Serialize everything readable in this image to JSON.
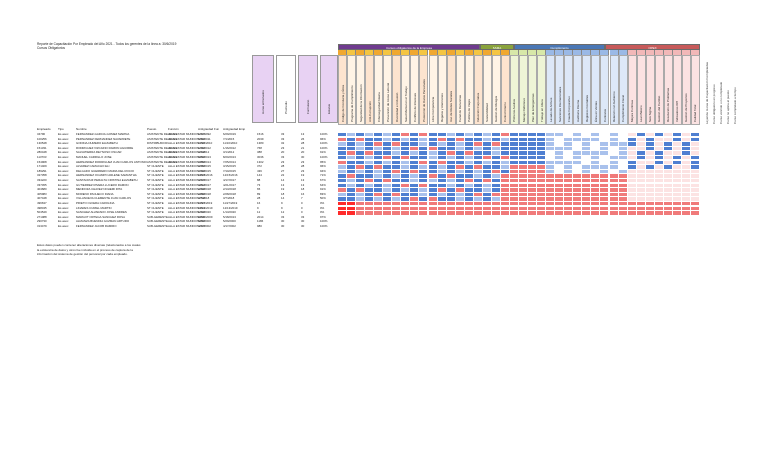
{
  "title": {
    "line1": "Reporte de Capacitación Por Empleado del Año 2021 - Todos los gerentes de la línea a: 30/6/2019",
    "line2": "Cursos Obligatorios"
  },
  "columns": {
    "employee": "Empleado",
    "type": "Tipo",
    "name": "Nombre",
    "position": "Puesto",
    "function": "Función",
    "function_date": "Antigüedad Fun",
    "hire_date": "Antigüedad Emp"
  },
  "big_headers": [
    "Horas entrenados",
    "Promedio",
    "Formulario",
    "Estatus"
  ],
  "groups": [
    {
      "label": "Cursos obligatorios de la Empresa",
      "color": "#6f3b8e"
    },
    {
      "label": "SSMA",
      "color": "#8aa33c"
    },
    {
      "label": "Cumplimiento",
      "color": "#4a77b5"
    },
    {
      "label": "OPEX",
      "color": "#c75a5a"
    }
  ],
  "course_headers": [
    "Código de Conducta y Ética",
    "Programa de Cumplimiento",
    "Seguridad de la Información",
    "Anti-Corrupción",
    "Ciberseguridad básica",
    "Prevención de Acoso Laboral",
    "Diversidad e Inclusión",
    "Salud Mental en el Trabajo",
    "Conflicto de Intereses",
    "Protección de Datos Personales",
    "Libre Competencia",
    "Regalos y Atenciones",
    "Uso de Redes Sociales",
    "Canal de Denuncias",
    "Política de Viajes",
    "Inducción Corporativa",
    "Sostenibilidad",
    "Gestión de Riesgos",
    "Control Interno",
    "Primeros Auxilios",
    "Manejo Defensivo",
    "Plan de Emergencias",
    "Trabajo en Altura",
    "Lavado de Activos",
    "Sanciones Internacionales",
    "Fraude Corporativo",
    "Auditoría Interna",
    "Registros Contables",
    "Ética en Ventas",
    "Contratos",
    "Relación con Gobierno",
    "Cumplimiento Fiscal",
    "Mejora Continua",
    "Lean Básico",
    "Seis Sigma",
    "Gestión del Cambio",
    "Resolución de Problemas",
    "Indicadores KPI",
    "Gestión de Proyectos",
    "Calidad Total"
  ],
  "right_notes": [
    "Leyenda: Horas de Capacitación Completadas",
    "Curso obligatorio en progreso",
    "Curso vencido o no completado",
    "Curso no aplica al puesto",
    "Curso completado a tiempo"
  ],
  "rows": [
    {
      "id": "34796",
      "type": "Ex-asoc",
      "name": "FERNANDEZ-GARCIA-GOMEZ MARINA",
      "pos": "ASISTENTE DE ZONA",
      "fn": "ALLA ESTAR MUNDOSUNO",
      "d1": "1/17/1992",
      "d2": "6/29/2019",
      "h": "1516",
      "p": "33",
      "f": "13",
      "s": "100%"
    },
    {
      "id": "100256",
      "type": "Ex-asoc",
      "name": "PERNANDEZ FERNANDEZ NAVARRETE",
      "pos": "ASISTENTE DE ZONA",
      "fn": "ALLA ESTAR MUNDOSUNO",
      "d1": "5/30/2011",
      "d2": "7/1/2015",
      "h": "2039",
      "p": "33",
      "f": "26",
      "s": "96%"
    },
    {
      "id": "130548",
      "type": "Ex-asoc",
      "name": "GODINA-NUMERO ELIZABETH",
      "pos": "DISTRIBUIDOR",
      "fn": "ALLA ESTAR MUNDOSUNO",
      "d1": "11/16/2010",
      "d2": "11/16/2010",
      "h": "1380",
      "p": "32",
      "f": "28",
      "s": "100%"
    },
    {
      "id": "151331",
      "type": "Ex-asoc",
      "name": "RODRIGUEZ VIZCAINO RAMON AGUIRRE",
      "pos": "ASISTENTE DE ZONA",
      "fn": "ALLA ESTAR MUNDOSUNO",
      "d1": "1/16/2012",
      "d2": "1/16/2012",
      "h": "768",
      "p": "23",
      "f": "21",
      "s": "100%"
    },
    {
      "id": "280448",
      "type": "Ex-asoc",
      "name": "SALVATIERRA REYNOSO OSCAR",
      "pos": "ASISTENTE DE ZONA",
      "fn": "ALLA ESTAR MUNDOSUNO",
      "d1": "3/1/2012",
      "d2": "3/1/2012",
      "h": "388",
      "p": "20",
      "f": "20",
      "s": "91%"
    },
    {
      "id": "113703",
      "type": "Ex-asoc",
      "name": "MANUEL CARRILLO JOSE",
      "pos": "ASISTENTE DE ZONA",
      "fn": "ALLA ESTAR MUNDOSUNO",
      "d1": "8/20/2013",
      "d2": "8/20/2013",
      "h": "3036",
      "p": "33",
      "f": "30",
      "s": "100%"
    },
    {
      "id": "154908",
      "type": "Ex-asoc",
      "name": "HERNANDEZ RODRIGUEZ JUAN CARLOS ANTONIO",
      "pos": "ASISTENTE DE ZONA",
      "fn": "ALLA ESTAR MUNDOSUNO",
      "d1": "7/25/2014",
      "d2": "7/25/2014",
      "h": "1302",
      "p": "23",
      "f": "23",
      "s": "95%"
    },
    {
      "id": "171409",
      "type": "Ex-asoc",
      "name": "ALVAREZ CAMACHO ELI",
      "pos": "ST CLIENTE",
      "fn": "ALLA ESTAR MUNDOSUNO",
      "d1": "3/15/2015",
      "d2": "3/15/2015",
      "h": "372",
      "p": "28",
      "f": "28",
      "s": "96%"
    },
    {
      "id": "189291",
      "type": "Ex-asoc",
      "name": "DELGADO GUERRERO MARIA DEL ROCIO",
      "pos": "ST CLIENTE",
      "fn": "ALLA ESTAR MUNDOSUNO",
      "d1": "7/10/2015",
      "d2": "7/10/2015",
      "h": "436",
      "p": "27",
      "f": "23",
      "s": "94%"
    },
    {
      "id": "327358",
      "type": "Ex-asoc",
      "name": "HERNANDEZ OCAMPO ARLENE SAMANTHA",
      "pos": "ST CLIENTE",
      "fn": "ALLA ESTAR MUNDOSUNO",
      "d1": "12/15/2016",
      "d2": "12/15/2016",
      "h": "144",
      "p": "22",
      "f": "19",
      "s": "71%"
    },
    {
      "id": "334220",
      "type": "Ex-asoc",
      "name": "SANTACRUZ PERALTA CRISTINA ELIZABETH",
      "pos": "ST CLIENTE",
      "fn": "ALLA ESTAR MUNDOSUNO",
      "d1": "4/17/2017",
      "d2": "4/17/2017",
      "h": "88",
      "p": "14",
      "f": "13",
      "s": "67%"
    },
    {
      "id": "337455",
      "type": "Ex-asoc",
      "name": "GUTIERREZ RIVERA LUCERO RAMON",
      "pos": "ST CLIENTE",
      "fn": "ALLA ESTAR MUNDOSUNO",
      "d1": "4/21/2017",
      "d2": "4/21/2017",
      "h": "73",
      "p": "13",
      "f": "13",
      "s": "64%"
    },
    {
      "id": "404680",
      "type": "Ex-asoc",
      "name": "MENDOZA CHAVEZ NOHEMI RITA",
      "pos": "ST CLIENTE",
      "fn": "ALLA ESTAR MUNDOSUNO",
      "d1": "2/13/2018",
      "d2": "2/13/2018",
      "h": "65",
      "p": "19",
      "f": "18",
      "s": "91%"
    },
    {
      "id": "405983",
      "type": "Ex-asoc",
      "name": "MORENO PACHECO DIANA",
      "pos": "ST CLIENTE",
      "fn": "ALLA ESTAR MUNDOSUNO",
      "d1": "2/28/2018",
      "d2": "2/28/2018",
      "h": "89",
      "p": "18",
      "f": "16",
      "s": "83%"
    },
    {
      "id": "407448",
      "type": "Ex-asoc",
      "name": "VILLANUEVA CLEMENTE JUAN CARLOS",
      "pos": "ST CLIENTE",
      "fn": "ALLA ESTAR MUNDOSUNO",
      "d1": "3/7/2018",
      "d2": "3/7/2018",
      "h": "28",
      "p": "14",
      "f": "7",
      "s": "50%"
    },
    {
      "id": "496637",
      "type": "Ex-asoc",
      "name": "PRIETO OLVERA CAROLINA",
      "pos": "ST CLIENTE",
      "fn": "ALLA ESTAR MUNDOSUNO",
      "d1": "11/27/2019",
      "d2": "11/27/2019",
      "h": "16",
      "p": "9",
      "f": "0",
      "s": "0%"
    },
    {
      "id": "498435",
      "type": "Ex-asoc",
      "name": "LINARES CURIEL MARTIN",
      "pos": "ST CLIENTE",
      "fn": "ALLA ESTAR MUNDOSUNO",
      "d1": "12/13/2019",
      "d2": "12/13/2019",
      "h": "9",
      "p": "9",
      "f": "0",
      "s": "0%"
    },
    {
      "id": "504549",
      "type": "Ex-asoc",
      "name": "SANCHEZ ALVARADO JOSE ANDRES",
      "pos": "ST CLIENTE",
      "fn": "ALLA ESTAR MUNDOSUNO",
      "d1": "1/13/2020",
      "d2": "1/13/2020",
      "h": "12",
      "p": "12",
      "f": "0",
      "s": "0%"
    },
    {
      "id": "271088",
      "type": "Ex-asoc",
      "name": "MARGOT ORTEGA SANCHEZ ROSA",
      "pos": "SUB-GERENTE",
      "fn": "ALLA ESTAR MUNDOSUNO",
      "d1": "10/30/2009",
      "d2": "5/18/2013",
      "h": "2014",
      "p": "33",
      "f": "33",
      "s": "97%"
    },
    {
      "id": "290730",
      "type": "Ex-asoc",
      "name": "ALMANZA BUENDIA GUZMAN ARTURO",
      "pos": "SUB-GERENTE",
      "fn": "ALLA ESTAR MUNDOSUNO",
      "d1": "5/29/2000",
      "d2": "5/29/2000",
      "h": "1186",
      "p": "30",
      "f": "30",
      "s": "100%"
    },
    {
      "id": "313479",
      "type": "Ex-asoc",
      "name": "FERNANDEZ JACOB RAMIRO",
      "pos": "SUB-GERENTE",
      "fn": "ALLA ESTAR MUNDOSUNO",
      "d1": "4/17/2002",
      "d2": "4/17/2002",
      "h": "980",
      "p": "30",
      "f": "30",
      "s": "100%"
    }
  ],
  "footnote": [
    "Estos datos pueden contener alteraciones diversas (relacionados a los cuales",
    "la existencia de datos y otros fue incluida en el proceso de captura de la",
    "información del sistema de gestión del personal por cada empleado."
  ],
  "colors": {
    "done": "#4f7fd1",
    "done_light": "#a9c1ec",
    "late": "#f07a7a",
    "missing": "#ff2a2a",
    "na": "#fce3e3",
    "lavender": "#e8d2f3",
    "purple": "#cda3e0"
  }
}
